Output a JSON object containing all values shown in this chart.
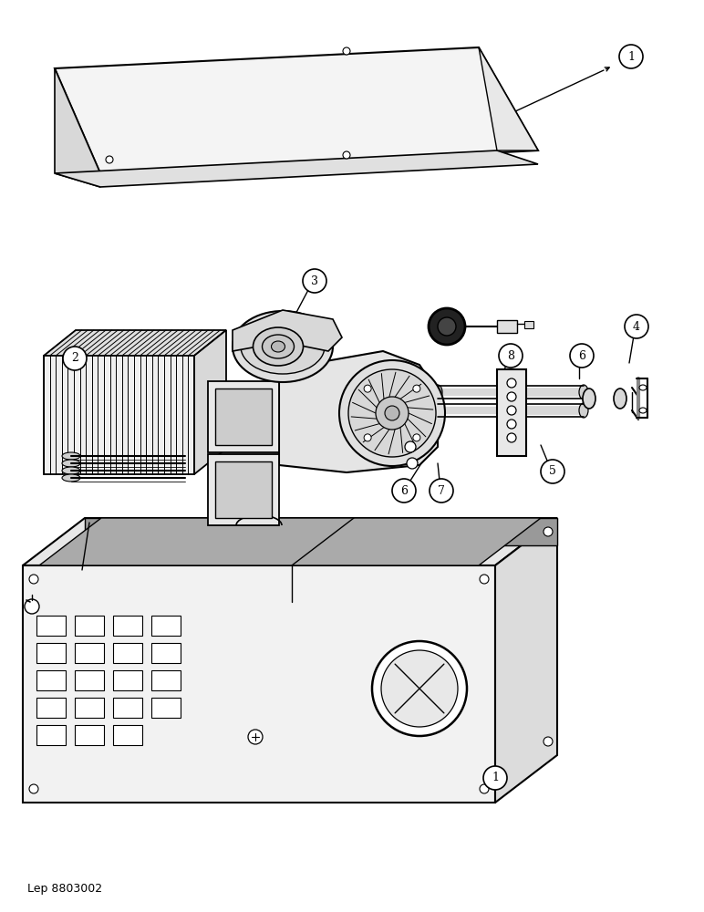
{
  "background_color": "#ffffff",
  "line_color": "#000000",
  "fig_width": 7.72,
  "fig_height": 10.0,
  "dpi": 100,
  "footer_text": "Lep 8803002"
}
